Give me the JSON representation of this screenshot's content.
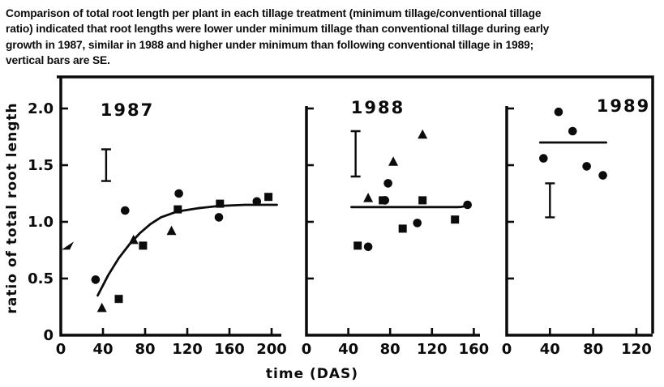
{
  "caption": {
    "lines": [
      "Comparison of total root length per plant in each tillage treatment (minimum tillage/conventional tillage",
      "ratio) indicated that root lengths were lower under minimum tillage than conventional tillage during early",
      "growth in 1987, similar in 1988 and higher under minimum than following conventional tillage in 1989;",
      "vertical bars are SE."
    ]
  },
  "figure": {
    "ylabel": "ratio of total root length",
    "xlabel": "time (DAS)",
    "ink_color": "#0b0b0b",
    "background_color": "#ffffff",
    "y_ticks": [
      {
        "v": 0,
        "label": "0"
      },
      {
        "v": 0.5,
        "label": "0.5"
      },
      {
        "v": 1.0,
        "label": "1.0"
      },
      {
        "v": 1.5,
        "label": "1.5"
      },
      {
        "v": 2.0,
        "label": "2.0"
      }
    ]
  },
  "chart_data": [
    {
      "type": "scatter",
      "title": "1987",
      "xlabel": "time (DAS)",
      "ylabel": "ratio of total root length",
      "xlim": [
        0,
        210
      ],
      "ylim": [
        0,
        2.28
      ],
      "grid": false,
      "legend": "none",
      "x_ticks": [
        0,
        40,
        80,
        120,
        160,
        200
      ],
      "y_tick_values": [
        0.5,
        1.0,
        1.5,
        2.0
      ],
      "series": [
        {
          "name": "circle-markers",
          "marker": "circle",
          "points": [
            [
              33,
              0.49
            ],
            [
              61,
              1.1
            ],
            [
              112,
              1.25
            ],
            [
              150,
              1.04
            ],
            [
              186,
              1.18
            ]
          ]
        },
        {
          "name": "square-markers",
          "marker": "square",
          "points": [
            [
              55,
              0.32
            ],
            [
              78,
              0.79
            ],
            [
              111,
              1.11
            ],
            [
              151,
              1.16
            ],
            [
              197,
              1.22
            ]
          ]
        },
        {
          "name": "triangle-markers",
          "marker": "triangle",
          "points": [
            [
              39,
              0.24
            ],
            [
              69,
              0.84
            ],
            [
              105,
              0.92
            ]
          ]
        }
      ],
      "fit_curve": {
        "shape": "asymptotic",
        "points": [
          [
            35,
            0.35
          ],
          [
            45,
            0.53
          ],
          [
            55,
            0.68
          ],
          [
            65,
            0.8
          ],
          [
            75,
            0.9
          ],
          [
            85,
            0.98
          ],
          [
            95,
            1.04
          ],
          [
            110,
            1.09
          ],
          [
            130,
            1.12
          ],
          [
            150,
            1.14
          ],
          [
            175,
            1.15
          ],
          [
            205,
            1.15
          ]
        ]
      },
      "se_bar": {
        "x": 43,
        "y_low": 1.36,
        "y_high": 1.64
      },
      "y_axis_marker_value": 0.79
    },
    {
      "type": "scatter",
      "title": "1988",
      "xlabel": "time (DAS)",
      "ylabel": "ratio of total root length",
      "xlim": [
        0,
        166
      ],
      "ylim": [
        0,
        2.28
      ],
      "grid": false,
      "legend": "none",
      "x_ticks": [
        0,
        40,
        80,
        120,
        160
      ],
      "y_tick_values": [
        0.5,
        1.0,
        1.5,
        2.0
      ],
      "series": [
        {
          "name": "circle-markers",
          "marker": "circle",
          "points": [
            [
              59,
              0.78
            ],
            [
              75,
              1.19
            ],
            [
              78,
              1.34
            ],
            [
              106,
              0.99
            ],
            [
              154,
              1.15
            ]
          ]
        },
        {
          "name": "square-markers",
          "marker": "square",
          "points": [
            [
              49,
              0.79
            ],
            [
              73,
              1.19
            ],
            [
              92,
              0.94
            ],
            [
              111,
              1.19
            ],
            [
              142,
              1.02
            ]
          ]
        },
        {
          "name": "triangle-markers",
          "marker": "triangle",
          "points": [
            [
              59,
              1.21
            ],
            [
              83,
              1.53
            ],
            [
              111,
              1.77
            ]
          ]
        }
      ],
      "fit_line": {
        "y": 1.13,
        "x_start": 43,
        "x_end": 154,
        "end_lift": 0.02
      },
      "se_bar": {
        "x": 47,
        "y_low": 1.4,
        "y_high": 1.8
      }
    },
    {
      "type": "scatter",
      "title": "1989",
      "xlabel": "time (DAS)",
      "ylabel": "ratio of total root length",
      "xlim": [
        0,
        138
      ],
      "ylim": [
        0,
        2.28
      ],
      "grid": false,
      "legend": "none",
      "x_ticks": [
        0,
        40,
        80,
        120
      ],
      "y_tick_values": [
        0.5,
        1.0,
        1.5,
        2.0
      ],
      "series": [
        {
          "name": "circle-markers",
          "marker": "circle",
          "points": [
            [
              34,
              1.56
            ],
            [
              48,
              1.97
            ],
            [
              61,
              1.8
            ],
            [
              74,
              1.49
            ],
            [
              89,
              1.41
            ]
          ]
        }
      ],
      "fit_line": {
        "y": 1.7,
        "x_start": 31,
        "x_end": 92
      },
      "se_bar": {
        "x": 40,
        "y_low": 1.04,
        "y_high": 1.34
      }
    }
  ]
}
